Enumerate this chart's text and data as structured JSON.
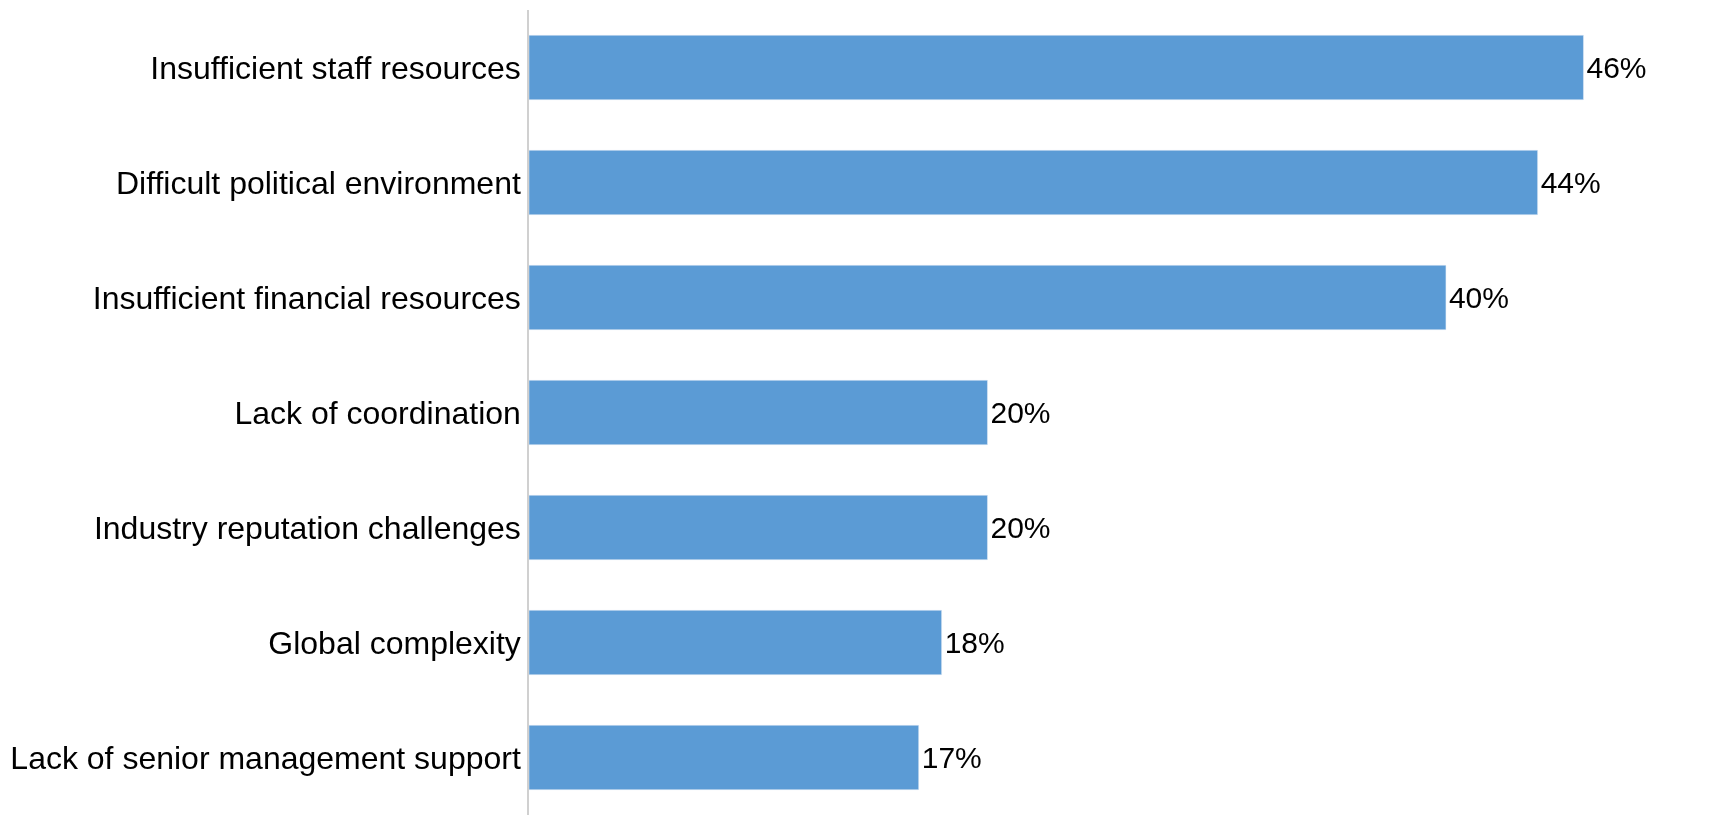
{
  "chart_data": {
    "type": "bar",
    "orientation": "horizontal",
    "categories": [
      "Insufficient staff resources",
      "Difficult political environment",
      "Insufficient financial resources",
      "Lack of coordination",
      "Industry reputation challenges",
      "Global complexity",
      "Lack of senior management support"
    ],
    "values": [
      46,
      44,
      40,
      20,
      20,
      18,
      17
    ],
    "value_labels": [
      "46%",
      "44%",
      "40%",
      "20%",
      "20%",
      "18%",
      "17%"
    ],
    "color": "#5b9bd5",
    "tick_labels": "y",
    "legend": false
  }
}
